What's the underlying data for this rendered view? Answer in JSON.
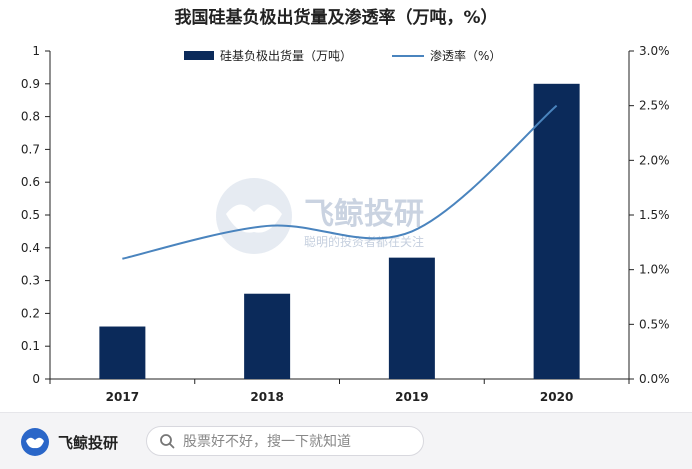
{
  "chart_data": {
    "type": "bar",
    "title": "我国硅基负极出货量及渗透率（万吨，%）",
    "categories": [
      "2017",
      "2018",
      "2019",
      "2020"
    ],
    "series": [
      {
        "name": "硅基负极出货量（万吨）",
        "type": "bar",
        "axis": "left",
        "values": [
          0.16,
          0.26,
          0.37,
          0.9
        ]
      },
      {
        "name": "渗透率（%）",
        "type": "line",
        "axis": "right",
        "values": [
          1.1,
          1.4,
          1.35,
          2.5
        ]
      }
    ],
    "ylim_left": [
      0,
      1
    ],
    "yticks_left": [
      "0",
      "0.1",
      "0.2",
      "0.3",
      "0.4",
      "0.5",
      "0.6",
      "0.7",
      "0.8",
      "0.9",
      "1"
    ],
    "ylim_right": [
      0,
      3
    ],
    "yticks_right": [
      "0.0%",
      "0.5%",
      "1.0%",
      "1.5%",
      "2.0%",
      "2.5%",
      "3.0%"
    ],
    "legend_position": "top",
    "grid": false,
    "colors": {
      "bar": "#0b2a5a",
      "line": "#4a84be",
      "axis": "#222222"
    }
  },
  "watermark": {
    "name": "飞鲸投研",
    "slogan": "聪明的投资者都在关注",
    "icon": "whale-logo-icon"
  },
  "footer": {
    "brand_name": "飞鲸投研",
    "brand_icon": "whale-logo-icon",
    "search_placeholder": "股票好不好，搜一下就知道",
    "search_icon": "search-icon"
  }
}
